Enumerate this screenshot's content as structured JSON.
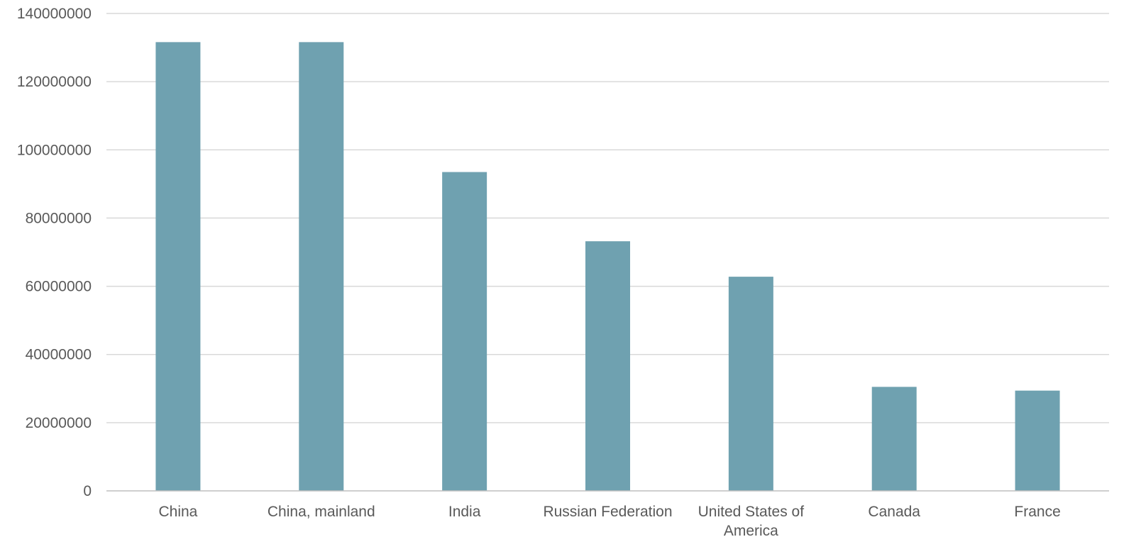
{
  "chart_data": {
    "type": "bar",
    "categories": [
      "China",
      "China, mainland",
      "India",
      "Russian Federation",
      "United States of America",
      "Canada",
      "France"
    ],
    "values": [
      131600000,
      131600000,
      93500000,
      73200000,
      62800000,
      30500000,
      29400000
    ],
    "yticks": [
      "0",
      "20000000",
      "40000000",
      "60000000",
      "80000000",
      "100000000",
      "120000000",
      "140000000"
    ],
    "ylim": [
      0,
      140000000
    ],
    "grid": true,
    "legend": "none",
    "bar_color": "#6fa1b0"
  }
}
